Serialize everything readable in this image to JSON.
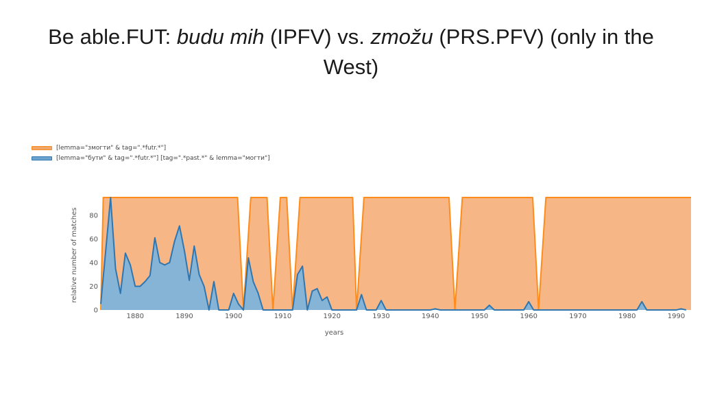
{
  "slide": {
    "title_parts": [
      "Be able.FUT: ",
      "budu mih",
      " (IPFV) vs. ",
      "zmožu",
      " (PRS.PFV) (only in the West)"
    ]
  },
  "colors": {
    "orange_fill": "#f7b27e",
    "orange_line": "#ff8c1a",
    "blue_fill": "#85b4d6",
    "blue_line": "#2f76b0"
  },
  "chart_data": {
    "type": "area",
    "title": "",
    "xlabel": "years",
    "ylabel": "relative number of matches",
    "xlim": [
      1873,
      1993
    ],
    "ylim": [
      0,
      95
    ],
    "x_ticks": [
      1880,
      1890,
      1900,
      1910,
      1920,
      1930,
      1940,
      1950,
      1960,
      1970,
      1980,
      1990
    ],
    "y_ticks": [
      0,
      20,
      40,
      60,
      80
    ],
    "grid": false,
    "legend_placement": "top-left",
    "series": [
      {
        "name": "[lemma=\"змогти\" & tag=\".*futr.*\"]",
        "color": "#ff8c1a",
        "x": [
          1873,
          1873.5,
          1874,
          1900.8,
          1902,
          1903.5,
          1906.8,
          1908,
          1909.5,
          1910.8,
          1912,
          1913.5,
          1924.2,
          1925,
          1926.5,
          1943.8,
          1945,
          1946.5,
          1960.8,
          1962,
          1963.5,
          1993
        ],
        "y": [
          0,
          95,
          95,
          95,
          0,
          95,
          95,
          0,
          95,
          95,
          0,
          95,
          95,
          0,
          95,
          95,
          0,
          95,
          95,
          0,
          95,
          95
        ]
      },
      {
        "name": "[lemma=\"бути\" & tag=\".*futr.*\"] [tag=\".*past.*\" & lemma=\"могти\"]",
        "color": "#2f76b0",
        "x": [
          1873,
          1874,
          1875,
          1876,
          1877,
          1878,
          1879,
          1880,
          1881,
          1882,
          1883,
          1884,
          1885,
          1886,
          1887,
          1888,
          1889,
          1890,
          1891,
          1892,
          1893,
          1894,
          1895,
          1896,
          1897,
          1898,
          1899,
          1900,
          1901,
          1902,
          1903,
          1904,
          1905,
          1906,
          1907,
          1908,
          1909,
          1910,
          1911,
          1912,
          1913,
          1914,
          1915,
          1916,
          1917,
          1918,
          1919,
          1920,
          1921,
          1922,
          1923,
          1924,
          1925,
          1926,
          1927,
          1928,
          1929,
          1930,
          1931,
          1939,
          1940,
          1941,
          1942,
          1950,
          1951,
          1952,
          1953,
          1958,
          1959,
          1960,
          1961,
          1962,
          1982,
          1983,
          1984,
          1990,
          1991,
          1992
        ],
        "y": [
          5,
          50,
          95,
          35,
          14,
          48,
          38,
          20,
          20,
          24,
          29,
          61,
          40,
          38,
          40,
          58,
          71,
          50,
          25,
          54,
          30,
          20,
          0,
          24,
          0,
          0,
          0,
          14,
          5,
          0,
          44,
          24,
          14,
          0,
          0,
          0,
          0,
          0,
          0,
          0,
          30,
          37,
          0,
          16,
          18,
          8,
          11,
          0,
          0,
          0,
          0,
          0,
          0,
          13,
          0,
          0,
          0,
          8,
          0,
          0,
          0,
          1,
          0,
          0,
          0,
          4,
          0,
          0,
          0,
          7,
          0,
          0,
          0,
          7,
          0,
          0,
          1,
          0
        ]
      }
    ]
  }
}
